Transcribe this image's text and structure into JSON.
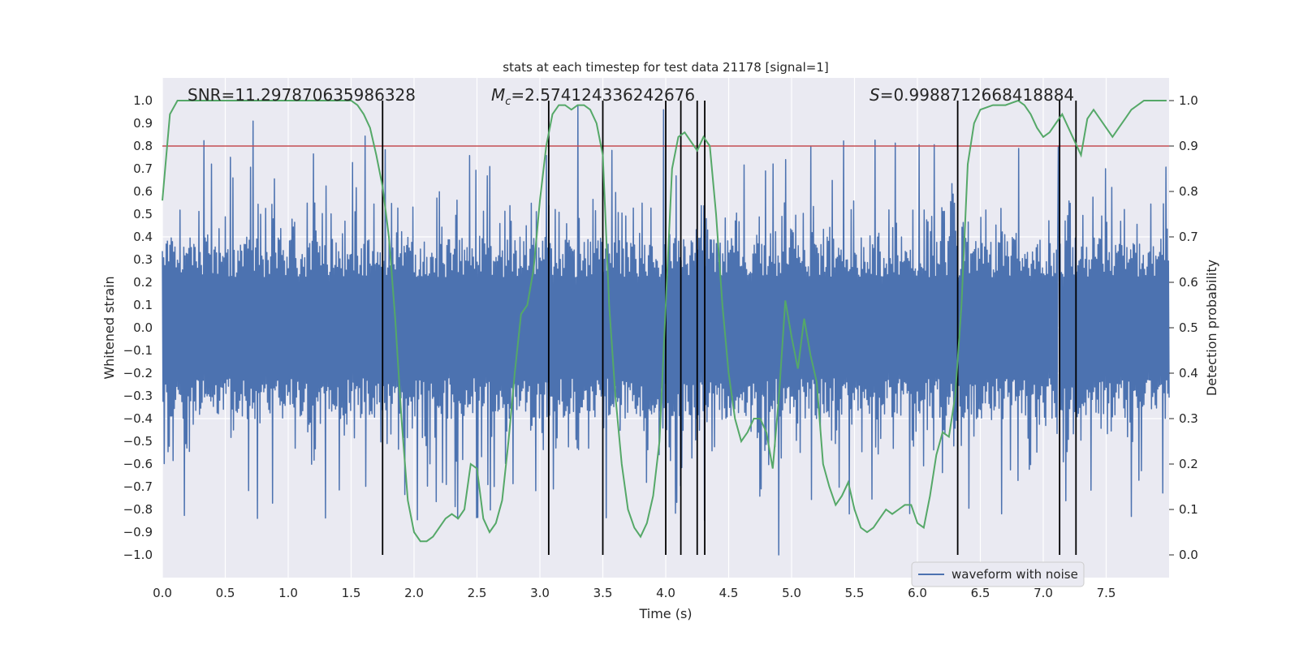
{
  "chart_data": {
    "type": "line",
    "title": "stats at each timestep for test data 21178 [signal=1]",
    "xlabel": "Time (s)",
    "ylabel_left": "Whitened strain",
    "ylabel_right": "Detection probability",
    "xlim": [
      0.0,
      8.0
    ],
    "ylim_left": [
      -1.1,
      1.1
    ],
    "ylim_right": [
      -0.05,
      1.05
    ],
    "x_ticks": [
      "0.0",
      "0.5",
      "1.0",
      "1.5",
      "2.0",
      "2.5",
      "3.0",
      "3.5",
      "4.0",
      "4.5",
      "5.0",
      "5.5",
      "6.0",
      "6.5",
      "7.0",
      "7.5"
    ],
    "y_ticks_left": [
      "1.0",
      "0.9",
      "0.8",
      "0.7",
      "0.6",
      "0.5",
      "0.4",
      "0.3",
      "0.2",
      "0.1",
      "0.0",
      "−0.1",
      "−0.2",
      "−0.3",
      "−0.4",
      "−0.5",
      "−0.6",
      "−0.7",
      "−0.8",
      "−0.9",
      "−1.0"
    ],
    "y_ticks_right": [
      "1.0",
      "0.9",
      "0.8",
      "0.7",
      "0.6",
      "0.5",
      "0.4",
      "0.3",
      "0.2",
      "0.1",
      "0.0"
    ],
    "annotations": {
      "snr": "SNR=11.297870635986328",
      "mc_prefix": "M",
      "mc_sub": "c",
      "mc_value": "=2.574124336242676",
      "s_prefix": "S",
      "s_value": "=0.9988712668418884"
    },
    "legend": {
      "label": "waveform with noise",
      "position": "lower-right"
    },
    "threshold": {
      "value": 0.8,
      "axis": "left",
      "color": "#c44e52"
    },
    "event_lines": [
      1.75,
      3.07,
      3.5,
      4.0,
      4.12,
      4.25,
      4.31,
      6.32,
      7.13,
      7.26
    ],
    "waveform": {
      "name": "waveform with noise",
      "color": "#4c72b0",
      "x_range": [
        0.0,
        8.0
      ],
      "n_samples": 1600,
      "approx_envelope": [
        -0.9,
        0.9
      ],
      "notable_peaks": [
        [
          0.72,
          0.91
        ],
        [
          3.3,
          0.98
        ],
        [
          3.98,
          0.96
        ],
        [
          4.9,
          -1.0
        ],
        [
          7.12,
          0.8
        ]
      ]
    },
    "probability": {
      "name": "detection probability",
      "color": "#55a868",
      "x": [
        0.0,
        0.06,
        0.12,
        0.2,
        0.3,
        0.5,
        0.8,
        1.0,
        1.2,
        1.4,
        1.5,
        1.55,
        1.6,
        1.65,
        1.7,
        1.75,
        1.8,
        1.85,
        1.9,
        1.95,
        2.0,
        2.05,
        2.1,
        2.15,
        2.2,
        2.25,
        2.3,
        2.35,
        2.4,
        2.45,
        2.5,
        2.55,
        2.6,
        2.65,
        2.7,
        2.75,
        2.8,
        2.85,
        2.9,
        2.95,
        3.0,
        3.05,
        3.1,
        3.15,
        3.2,
        3.25,
        3.3,
        3.35,
        3.4,
        3.45,
        3.5,
        3.55,
        3.6,
        3.65,
        3.7,
        3.75,
        3.8,
        3.85,
        3.9,
        3.95,
        4.0,
        4.05,
        4.1,
        4.15,
        4.2,
        4.25,
        4.3,
        4.35,
        4.4,
        4.45,
        4.5,
        4.55,
        4.6,
        4.65,
        4.7,
        4.75,
        4.8,
        4.85,
        4.9,
        4.95,
        5.0,
        5.05,
        5.1,
        5.15,
        5.2,
        5.25,
        5.3,
        5.35,
        5.4,
        5.45,
        5.5,
        5.55,
        5.6,
        5.65,
        5.7,
        5.75,
        5.8,
        5.85,
        5.9,
        5.95,
        6.0,
        6.05,
        6.1,
        6.15,
        6.2,
        6.25,
        6.3,
        6.35,
        6.4,
        6.45,
        6.5,
        6.6,
        6.7,
        6.8,
        6.85,
        6.9,
        6.95,
        7.0,
        7.05,
        7.1,
        7.15,
        7.2,
        7.25,
        7.3,
        7.35,
        7.4,
        7.45,
        7.5,
        7.55,
        7.6,
        7.65,
        7.7,
        7.75,
        7.8,
        7.85,
        7.9,
        7.95,
        7.98
      ],
      "y": [
        0.78,
        0.97,
        1.0,
        1.0,
        1.0,
        1.0,
        1.0,
        1.0,
        1.0,
        1.0,
        1.0,
        0.99,
        0.97,
        0.94,
        0.88,
        0.81,
        0.7,
        0.52,
        0.3,
        0.12,
        0.05,
        0.03,
        0.03,
        0.04,
        0.06,
        0.08,
        0.09,
        0.08,
        0.1,
        0.2,
        0.19,
        0.08,
        0.05,
        0.07,
        0.12,
        0.25,
        0.4,
        0.53,
        0.55,
        0.63,
        0.78,
        0.9,
        0.97,
        0.99,
        0.99,
        0.98,
        0.99,
        0.99,
        0.98,
        0.95,
        0.88,
        0.55,
        0.35,
        0.2,
        0.1,
        0.06,
        0.04,
        0.07,
        0.13,
        0.25,
        0.55,
        0.85,
        0.92,
        0.93,
        0.91,
        0.89,
        0.92,
        0.9,
        0.75,
        0.55,
        0.4,
        0.3,
        0.25,
        0.27,
        0.3,
        0.3,
        0.27,
        0.19,
        0.35,
        0.56,
        0.48,
        0.41,
        0.52,
        0.44,
        0.38,
        0.2,
        0.15,
        0.11,
        0.13,
        0.16,
        0.1,
        0.06,
        0.05,
        0.06,
        0.08,
        0.1,
        0.09,
        0.1,
        0.11,
        0.11,
        0.07,
        0.06,
        0.13,
        0.22,
        0.27,
        0.26,
        0.35,
        0.55,
        0.86,
        0.95,
        0.98,
        0.99,
        0.99,
        1.0,
        0.99,
        0.97,
        0.94,
        0.92,
        0.93,
        0.95,
        0.97,
        0.94,
        0.91,
        0.88,
        0.96,
        0.98,
        0.96,
        0.94,
        0.92,
        0.94,
        0.96,
        0.98,
        0.99,
        1.0,
        1.0,
        1.0,
        1.0,
        1.0
      ]
    }
  }
}
